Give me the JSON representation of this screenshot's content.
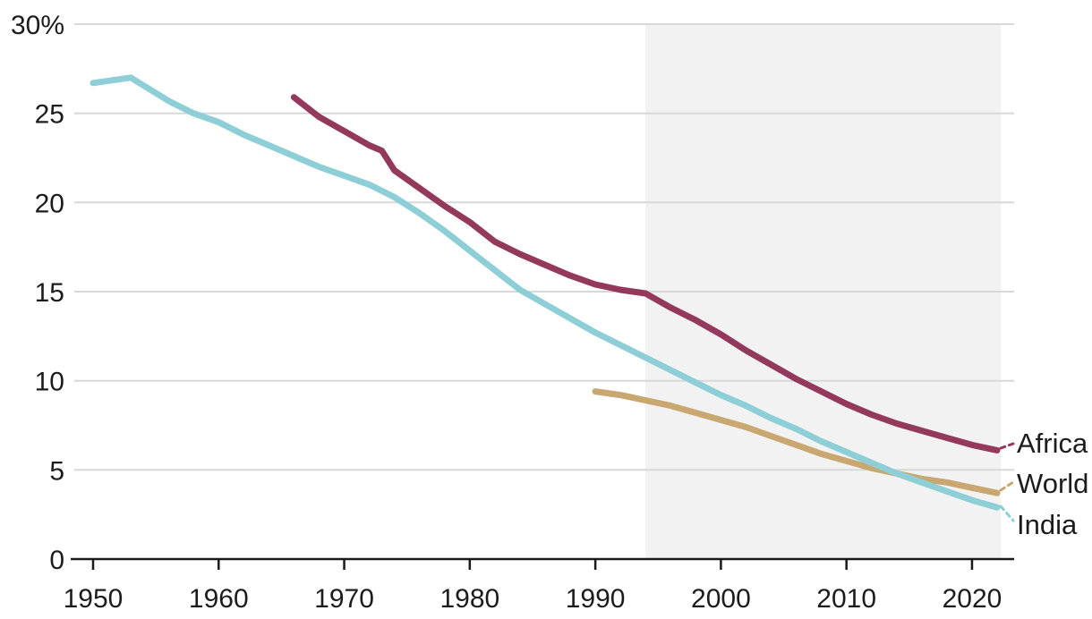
{
  "chart_data": {
    "type": "line",
    "title": "",
    "xlabel": "",
    "ylabel": "",
    "unit": "%",
    "xlim": [
      1950,
      2022.5
    ],
    "ylim": [
      0,
      30
    ],
    "grid": true,
    "legend_position": "end-of-line-labels",
    "x_ticks": [
      "1950",
      "1960",
      "1970",
      "1980",
      "1990",
      "2000",
      "2010",
      "2020"
    ],
    "y_ticks": [
      {
        "value": 0,
        "label": "0"
      },
      {
        "value": 5,
        "label": "5"
      },
      {
        "value": 10,
        "label": "10"
      },
      {
        "value": 15,
        "label": "15"
      },
      {
        "value": 20,
        "label": "20"
      },
      {
        "value": 25,
        "label": "25"
      },
      {
        "value": 30,
        "label": "30%"
      }
    ],
    "highlight_region": {
      "x0": 1994,
      "x1": 2022.3,
      "color": "#f2f2f2"
    },
    "series": [
      {
        "name": "Africa",
        "color": "#93395b",
        "points": [
          [
            1966,
            25.9
          ],
          [
            1968,
            24.8
          ],
          [
            1970,
            24.0
          ],
          [
            1972,
            23.2
          ],
          [
            1973,
            22.9
          ],
          [
            1974,
            21.8
          ],
          [
            1976,
            20.8
          ],
          [
            1978,
            19.8
          ],
          [
            1980,
            18.9
          ],
          [
            1982,
            17.8
          ],
          [
            1984,
            17.1
          ],
          [
            1986,
            16.5
          ],
          [
            1988,
            15.9
          ],
          [
            1990,
            15.4
          ],
          [
            1992,
            15.1
          ],
          [
            1994,
            14.9
          ],
          [
            1996,
            14.1
          ],
          [
            1998,
            13.4
          ],
          [
            2000,
            12.6
          ],
          [
            2002,
            11.7
          ],
          [
            2004,
            10.9
          ],
          [
            2006,
            10.1
          ],
          [
            2008,
            9.4
          ],
          [
            2010,
            8.7
          ],
          [
            2012,
            8.1
          ],
          [
            2014,
            7.6
          ],
          [
            2016,
            7.2
          ],
          [
            2018,
            6.8
          ],
          [
            2020,
            6.4
          ],
          [
            2022,
            6.1
          ]
        ]
      },
      {
        "name": "World",
        "color": "#c8a771",
        "points": [
          [
            1990,
            9.4
          ],
          [
            1992,
            9.2
          ],
          [
            1994,
            8.9
          ],
          [
            1996,
            8.6
          ],
          [
            1998,
            8.2
          ],
          [
            2000,
            7.8
          ],
          [
            2002,
            7.4
          ],
          [
            2004,
            6.9
          ],
          [
            2006,
            6.4
          ],
          [
            2008,
            5.9
          ],
          [
            2010,
            5.5
          ],
          [
            2012,
            5.1
          ],
          [
            2014,
            4.8
          ],
          [
            2016,
            4.5
          ],
          [
            2018,
            4.3
          ],
          [
            2020,
            4.0
          ],
          [
            2022,
            3.7
          ]
        ]
      },
      {
        "name": "India",
        "color": "#8dced7",
        "points": [
          [
            1950,
            26.7
          ],
          [
            1953,
            27.0
          ],
          [
            1956,
            25.7
          ],
          [
            1958,
            25.0
          ],
          [
            1960,
            24.5
          ],
          [
            1962,
            23.8
          ],
          [
            1964,
            23.2
          ],
          [
            1966,
            22.6
          ],
          [
            1968,
            22.0
          ],
          [
            1970,
            21.5
          ],
          [
            1972,
            21.0
          ],
          [
            1974,
            20.3
          ],
          [
            1976,
            19.4
          ],
          [
            1978,
            18.4
          ],
          [
            1980,
            17.3
          ],
          [
            1982,
            16.2
          ],
          [
            1984,
            15.1
          ],
          [
            1986,
            14.3
          ],
          [
            1988,
            13.5
          ],
          [
            1990,
            12.7
          ],
          [
            1992,
            12.0
          ],
          [
            1994,
            11.3
          ],
          [
            1996,
            10.6
          ],
          [
            1998,
            9.9
          ],
          [
            2000,
            9.2
          ],
          [
            2002,
            8.6
          ],
          [
            2004,
            7.9
          ],
          [
            2006,
            7.3
          ],
          [
            2008,
            6.6
          ],
          [
            2010,
            6.0
          ],
          [
            2012,
            5.4
          ],
          [
            2014,
            4.8
          ],
          [
            2016,
            4.3
          ],
          [
            2018,
            3.8
          ],
          [
            2020,
            3.3
          ],
          [
            2022,
            2.9
          ]
        ]
      }
    ],
    "style": {
      "background": "#ffffff",
      "gridline_color": "#d8d8d8",
      "axis_color": "#1a1a1a",
      "text_color": "#1c1c1c"
    }
  }
}
